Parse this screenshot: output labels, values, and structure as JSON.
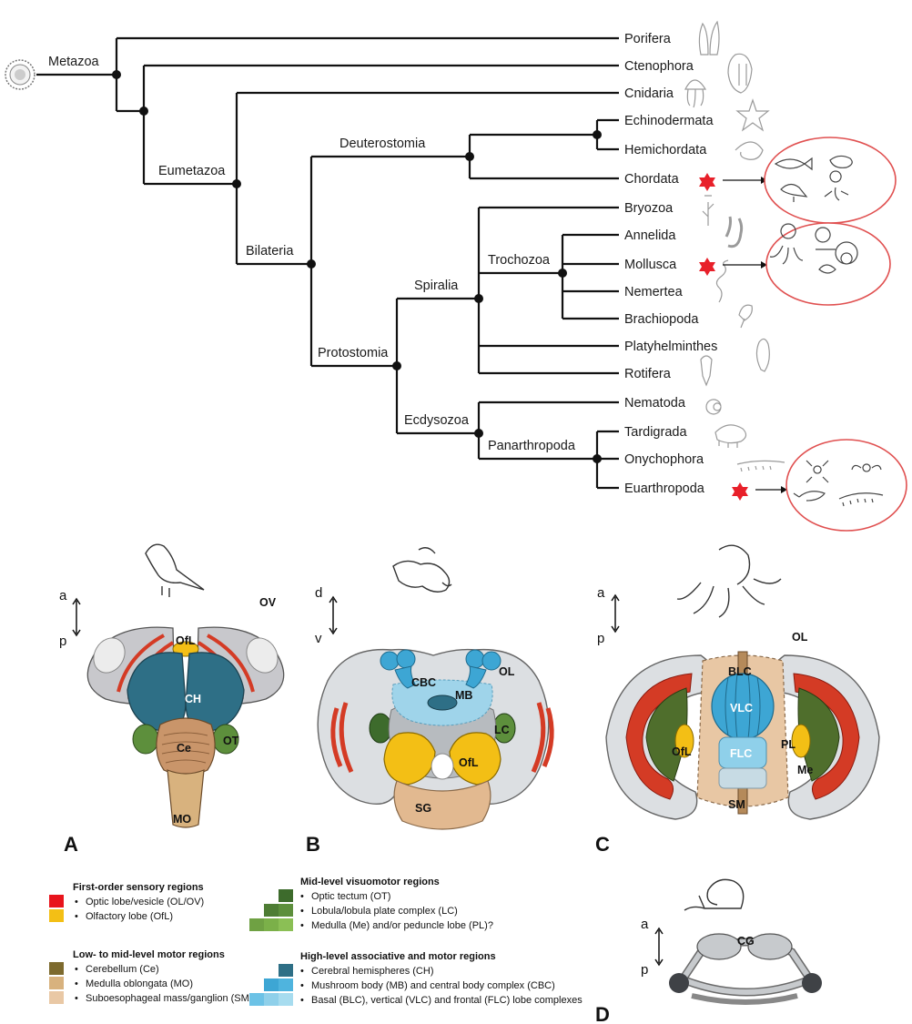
{
  "tree": {
    "taxa": [
      "Porifera",
      "Ctenophora",
      "Cnidaria",
      "Echinodermata",
      "Hemichordata",
      "Chordata",
      "Bryozoa",
      "Annelida",
      "Mollusca",
      "Nemertea",
      "Brachiopoda",
      "Platyhelminthes",
      "Rotifera",
      "Nematoda",
      "Tardigrada",
      "Onychophora",
      "Euarthropoda"
    ],
    "clades": [
      "Metazoa",
      "Eumetazoa",
      "Bilateria",
      "Deuterostomia",
      "Protostomia",
      "Spiralia",
      "Trochozoa",
      "Ecdysozoa",
      "Panarthropoda"
    ],
    "highlighted": [
      "Chordata",
      "Mollusca",
      "Euarthropoda"
    ],
    "marker_color": "#e8202a",
    "circle_color": "#e05050"
  },
  "panels": {
    "A": {
      "letter": "A",
      "axis": [
        "a",
        "p"
      ],
      "labels": {
        "OfL": "OfL",
        "OV": "OV",
        "CH": "CH",
        "OT": "OT",
        "Ce": "Ce",
        "MO": "MO"
      }
    },
    "B": {
      "letter": "B",
      "axis": [
        "d",
        "v"
      ],
      "labels": {
        "OL": "OL",
        "CBC": "CBC",
        "MB": "MB",
        "LC": "LC",
        "OfL": "OfL",
        "SG": "SG"
      }
    },
    "C": {
      "letter": "C",
      "axis": [
        "a",
        "p"
      ],
      "labels": {
        "OL": "OL",
        "BLC": "BLC",
        "VLC": "VLC",
        "FLC": "FLC",
        "OfL": "OfL",
        "PL": "PL",
        "Me": "Me",
        "SM": "SM"
      }
    },
    "D": {
      "letter": "D",
      "axis": [
        "a",
        "p"
      ],
      "labels": {
        "CG": "CG"
      }
    }
  },
  "legend": {
    "groups": [
      {
        "title": "First-order sensory regions",
        "items": [
          "Optic lobe/vesicle (OL/OV)",
          "Olfactory lobe (OfL)"
        ],
        "colors": [
          "#e8141c",
          "#f3bf15"
        ]
      },
      {
        "title": "Low- to mid-level motor regions",
        "items": [
          "Cerebellum (Ce)",
          "Medulla oblongata (MO)",
          "Suboesophageal mass/ganglion (SM/SG)"
        ],
        "colors": [
          "#7d6a2e",
          "#d8b27e",
          "#e9c8a5"
        ]
      },
      {
        "title": "Mid-level visuomotor regions",
        "items": [
          "Optic tectum (OT)",
          "Lobula/lobula plate complex (LC)",
          "Medulla (Me) and/or peduncle lobe (PL)?"
        ],
        "colors": [
          "#3d6b2c",
          "#5d8f3c",
          "#7bb049"
        ]
      },
      {
        "title": "High-level associative and motor regions",
        "items": [
          "Cerebral hemispheres (CH)",
          "Mushroom body (MB) and central body complex (CBC)",
          "Basal (BLC), vertical (VLC) and frontal (FLC) lobe complexes"
        ],
        "colors": [
          "#2e6f86",
          "#3da6d4",
          "#8fd0ea"
        ]
      }
    ]
  }
}
